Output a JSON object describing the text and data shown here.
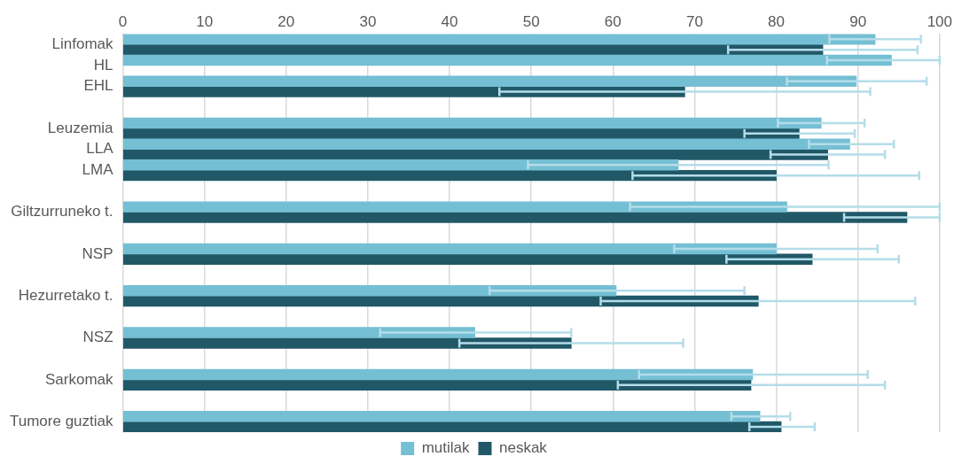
{
  "chart_data": {
    "type": "bar",
    "orientation": "horizontal",
    "categories": [
      "Linfomak",
      "HL",
      "EHL",
      null,
      "Leuzemia",
      "LLA",
      "LMA",
      null,
      "Giltzurruneko t.",
      null,
      "NSP",
      null,
      "Hezurretako t.",
      null,
      "NSZ",
      null,
      "Sarkomak",
      null,
      "Tumore guztiak"
    ],
    "series": [
      {
        "name": "mutilak",
        "color": "#75bfd4",
        "values": [
          92.1,
          94.1,
          89.8,
          null,
          85.5,
          89.0,
          68.0,
          null,
          81.3,
          null,
          80.0,
          null,
          60.4,
          null,
          43.1,
          null,
          77.1,
          null,
          78.0
        ],
        "errors": [
          [
            86.5,
            97.7
          ],
          [
            86.2,
            100
          ],
          [
            81.3,
            98.4
          ],
          null,
          [
            80.2,
            90.8
          ],
          [
            84.0,
            94.4
          ],
          [
            49.6,
            86.4
          ],
          null,
          [
            62.1,
            100
          ],
          null,
          [
            67.5,
            92.4
          ],
          null,
          [
            44.9,
            76.1
          ],
          null,
          [
            31.5,
            54.9
          ],
          null,
          [
            63.2,
            91.2
          ],
          null,
          [
            74.5,
            81.7
          ]
        ]
      },
      {
        "name": "neskak",
        "color": "#215868",
        "values": [
          85.7,
          null,
          68.8,
          null,
          82.8,
          86.3,
          80.0,
          null,
          96.0,
          null,
          84.4,
          null,
          77.8,
          null,
          54.9,
          null,
          76.9,
          null,
          80.6
        ],
        "errors": [
          [
            74.1,
            97.3
          ],
          null,
          [
            46.1,
            91.5
          ],
          null,
          [
            76.1,
            89.6
          ],
          [
            79.3,
            93.3
          ],
          [
            62.4,
            97.5
          ],
          null,
          [
            88.3,
            100
          ],
          null,
          [
            73.9,
            95.0
          ],
          null,
          [
            58.5,
            97.0
          ],
          null,
          [
            41.2,
            68.6
          ],
          null,
          [
            60.6,
            93.3
          ],
          null,
          [
            76.7,
            84.7
          ]
        ]
      }
    ],
    "xlim": [
      0,
      100
    ],
    "xticks": [
      0,
      10,
      20,
      30,
      40,
      50,
      60,
      70,
      80,
      90,
      100
    ],
    "grid": "x",
    "legend": "bottom"
  }
}
